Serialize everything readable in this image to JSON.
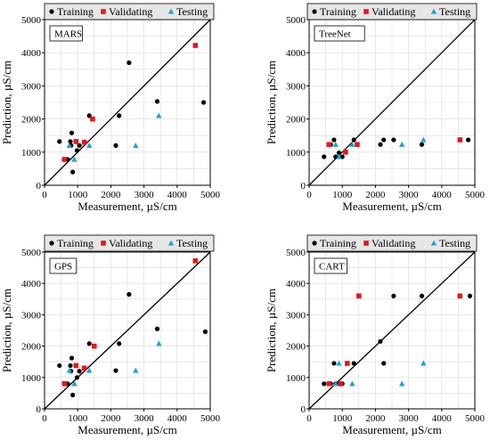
{
  "chart_data": [
    {
      "type": "scatter",
      "title": "MARS",
      "xlabel": "Measurement, µS/cm",
      "ylabel": "Prediction, µS/cm",
      "xlim": [
        0,
        5000
      ],
      "ylim": [
        0,
        5000
      ],
      "xticks": [
        "0",
        "1000",
        "2000",
        "3000",
        "4000",
        "5000"
      ],
      "yticks": [
        "0",
        "1000",
        "2000",
        "3000",
        "4000",
        "5000"
      ],
      "grid": true,
      "legend_position": "top",
      "diagonal": true,
      "series": [
        {
          "name": "Training",
          "color": "#000000",
          "marker": "circle",
          "points": [
            [
              450,
              1320
            ],
            [
              700,
              780
            ],
            [
              780,
              1320
            ],
            [
              800,
              1200
            ],
            [
              820,
              1580
            ],
            [
              850,
              400
            ],
            [
              980,
              1050
            ],
            [
              1050,
              1200
            ],
            [
              1200,
              1300
            ],
            [
              1350,
              2100
            ],
            [
              2150,
              1200
            ],
            [
              2250,
              2100
            ],
            [
              2550,
              3700
            ],
            [
              3400,
              2530
            ],
            [
              4800,
              2500
            ]
          ]
        },
        {
          "name": "Validating",
          "color": "#e8141c",
          "marker": "square",
          "points": [
            [
              600,
              780
            ],
            [
              950,
              1320
            ],
            [
              1200,
              1300
            ],
            [
              1450,
              2000
            ],
            [
              4550,
              4220
            ]
          ]
        },
        {
          "name": "Testing",
          "color": "#1ea0d8",
          "marker": "triangle",
          "points": [
            [
              750,
              1200
            ],
            [
              900,
              780
            ],
            [
              1350,
              1200
            ],
            [
              2750,
              1200
            ],
            [
              3450,
              2100
            ]
          ]
        }
      ]
    },
    {
      "type": "scatter",
      "title": "TreeNet",
      "xlabel": "Measurement, µS/cm",
      "ylabel": "Prediction, µS/cm",
      "xlim": [
        0,
        5000
      ],
      "ylim": [
        0,
        5000
      ],
      "xticks": [
        "0",
        "1000",
        "2000",
        "3000",
        "4000",
        "5000"
      ],
      "yticks": [
        "0",
        "1000",
        "2000",
        "3000",
        "4000",
        "5000"
      ],
      "grid": true,
      "legend_position": "top",
      "diagonal": true,
      "series": [
        {
          "name": "Training",
          "color": "#000000",
          "marker": "circle",
          "points": [
            [
              450,
              860
            ],
            [
              650,
              1230
            ],
            [
              750,
              1370
            ],
            [
              800,
              860
            ],
            [
              900,
              980
            ],
            [
              1000,
              860
            ],
            [
              1100,
              1000
            ],
            [
              1350,
              1370
            ],
            [
              2150,
              1230
            ],
            [
              2250,
              1370
            ],
            [
              2550,
              1370
            ],
            [
              3400,
              1230
            ],
            [
              4800,
              1370
            ]
          ]
        },
        {
          "name": "Validating",
          "color": "#e8141c",
          "marker": "square",
          "points": [
            [
              600,
              1230
            ],
            [
              1100,
              1000
            ],
            [
              1450,
              1230
            ],
            [
              4550,
              1370
            ]
          ]
        },
        {
          "name": "Testing",
          "color": "#1ea0d8",
          "marker": "triangle",
          "points": [
            [
              800,
              1230
            ],
            [
              900,
              860
            ],
            [
              1300,
              1230
            ],
            [
              2800,
              1230
            ],
            [
              3450,
              1370
            ]
          ]
        }
      ]
    },
    {
      "type": "scatter",
      "title": "GPS",
      "xlabel": "Measurement, µS/cm",
      "ylabel": "Prediction, µS/cm",
      "xlim": [
        0,
        5000
      ],
      "ylim": [
        0,
        5000
      ],
      "xticks": [
        "0",
        "1000",
        "2000",
        "3000",
        "4000",
        "5000"
      ],
      "yticks": [
        "0",
        "1000",
        "2000",
        "3000",
        "4000",
        "5000"
      ],
      "grid": true,
      "legend_position": "top",
      "diagonal": true,
      "series": [
        {
          "name": "Training",
          "color": "#000000",
          "marker": "circle",
          "points": [
            [
              450,
              1380
            ],
            [
              700,
              800
            ],
            [
              780,
              1380
            ],
            [
              800,
              1200
            ],
            [
              820,
              1620
            ],
            [
              850,
              440
            ],
            [
              980,
              1000
            ],
            [
              1050,
              1200
            ],
            [
              1200,
              1300
            ],
            [
              1350,
              2080
            ],
            [
              2150,
              1220
            ],
            [
              2250,
              2080
            ],
            [
              2550,
              3650
            ],
            [
              3400,
              2550
            ],
            [
              4850,
              2460
            ]
          ]
        },
        {
          "name": "Validating",
          "color": "#e8141c",
          "marker": "square",
          "points": [
            [
              600,
              800
            ],
            [
              950,
              1380
            ],
            [
              1200,
              1300
            ],
            [
              1500,
              2000
            ],
            [
              4550,
              4720
            ]
          ]
        },
        {
          "name": "Testing",
          "color": "#1ea0d8",
          "marker": "triangle",
          "points": [
            [
              750,
              1220
            ],
            [
              900,
              800
            ],
            [
              1350,
              1220
            ],
            [
              2750,
              1220
            ],
            [
              3450,
              2080
            ]
          ]
        }
      ]
    },
    {
      "type": "scatter",
      "title": "CART",
      "xlabel": "Measurement, µS/cm",
      "ylabel": "Prediction, µS/cm",
      "xlim": [
        0,
        5000
      ],
      "ylim": [
        0,
        5000
      ],
      "xticks": [
        "0",
        "1000",
        "2000",
        "3000",
        "4000",
        "5000"
      ],
      "yticks": [
        "0",
        "1000",
        "2000",
        "3000",
        "4000",
        "5000"
      ],
      "grid": true,
      "legend_position": "top",
      "diagonal": true,
      "series": [
        {
          "name": "Training",
          "color": "#000000",
          "marker": "circle",
          "points": [
            [
              450,
              800
            ],
            [
              650,
              800
            ],
            [
              750,
              1450
            ],
            [
              800,
              800
            ],
            [
              900,
              800
            ],
            [
              1000,
              800
            ],
            [
              1350,
              1450
            ],
            [
              2150,
              2150
            ],
            [
              2250,
              1450
            ],
            [
              2550,
              3600
            ],
            [
              3400,
              3600
            ],
            [
              4850,
              3600
            ]
          ]
        },
        {
          "name": "Validating",
          "color": "#e8141c",
          "marker": "square",
          "points": [
            [
              600,
              800
            ],
            [
              950,
              800
            ],
            [
              1150,
              1450
            ],
            [
              1500,
              3600
            ],
            [
              4550,
              3600
            ]
          ]
        },
        {
          "name": "Testing",
          "color": "#1ea0d8",
          "marker": "triangle",
          "points": [
            [
              800,
              800
            ],
            [
              900,
              1450
            ],
            [
              1300,
              800
            ],
            [
              2800,
              800
            ],
            [
              3450,
              1450
            ]
          ]
        }
      ]
    }
  ]
}
